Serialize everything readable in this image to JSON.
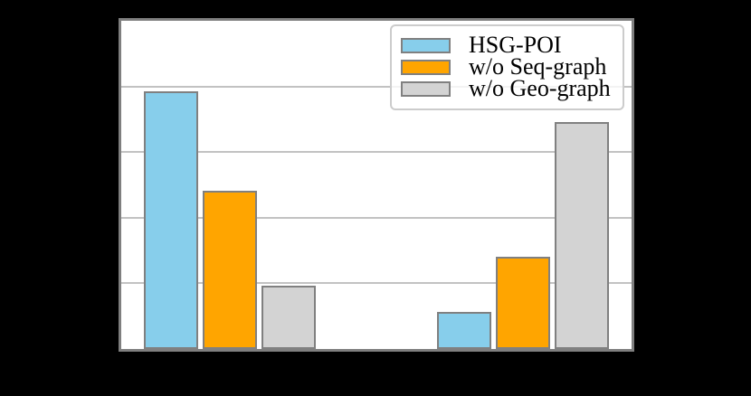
{
  "figure": {
    "background_color": "#000000",
    "plot_background_color": "#ffffff",
    "frame_color": "#7f7f7f",
    "gridline_color": "#c2c2c2"
  },
  "chart_data": {
    "type": "bar",
    "title": "",
    "xlabel": "",
    "ylabel": "",
    "categories": [
      "",
      ""
    ],
    "series": [
      {
        "name": "HSG-POI",
        "color": "#87ceeb",
        "values": [
          3.93,
          0.56
        ]
      },
      {
        "name": "w/o Seq-graph",
        "color": "#ffa500",
        "values": [
          2.41,
          1.4
        ]
      },
      {
        "name": "w/o Geo-graph",
        "color": "#d3d3d3",
        "values": [
          0.96,
          3.46
        ]
      }
    ],
    "ylim": [
      0,
      5
    ],
    "y_gridlines": [
      1,
      2,
      3,
      4
    ],
    "grid": true,
    "legend_position": "upper-right",
    "bar_edge_color": "#808080",
    "note": "Axis tick labels, axis titles and category labels are not visible in the screenshot (rendered black on black); bar values are expressed in gridline-interval units (plot height = 5 intervals)."
  }
}
